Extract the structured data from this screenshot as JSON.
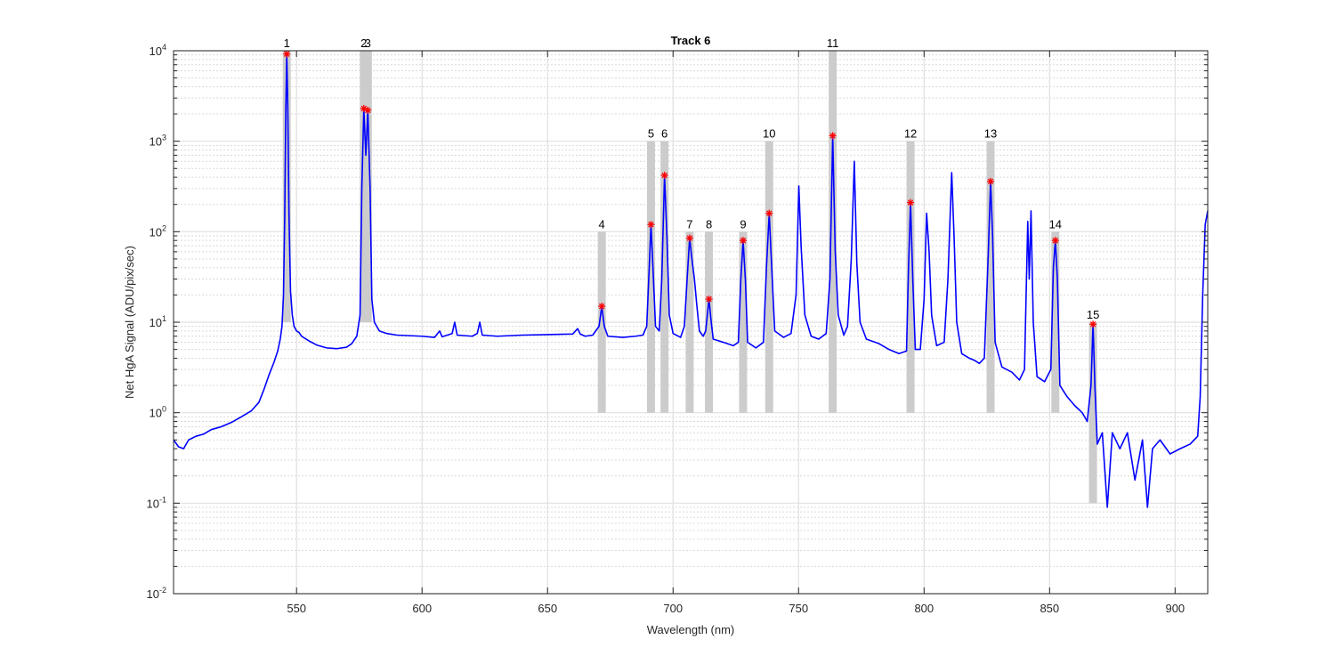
{
  "chart_data": {
    "type": "line",
    "title": "Track 6",
    "xlabel": "Wavelength (nm)",
    "ylabel": "Net HgA Signal (ADU/pix/sec)",
    "xlim": [
      501,
      913
    ],
    "ylim": [
      0.01,
      10000
    ],
    "yscale": "log",
    "grid": true,
    "x_ticks": [
      550,
      600,
      650,
      700,
      750,
      800,
      850,
      900
    ],
    "y_ticks": [
      {
        "value": 0.01,
        "base": "10",
        "exp": "-2"
      },
      {
        "value": 0.1,
        "base": "10",
        "exp": "-1"
      },
      {
        "value": 1,
        "base": "10",
        "exp": "0"
      },
      {
        "value": 10,
        "base": "10",
        "exp": "1"
      },
      {
        "value": 100,
        "base": "10",
        "exp": "2"
      },
      {
        "value": 1000,
        "base": "10",
        "exp": "3"
      },
      {
        "value": 10000,
        "base": "10",
        "exp": "4"
      }
    ],
    "colors": {
      "line": "#0000ff",
      "marker": "#ff0000",
      "band": "#cccccc",
      "grid": "#e0e0e0"
    },
    "series": [
      {
        "points": [
          [
            501,
            0.5
          ],
          [
            503,
            0.42
          ],
          [
            505,
            0.4
          ],
          [
            507,
            0.5
          ],
          [
            510,
            0.55
          ],
          [
            513,
            0.58
          ],
          [
            516,
            0.65
          ],
          [
            520,
            0.7
          ],
          [
            524,
            0.78
          ],
          [
            528,
            0.9
          ],
          [
            532,
            1.05
          ],
          [
            535,
            1.3
          ],
          [
            537,
            1.8
          ],
          [
            539,
            2.6
          ],
          [
            541,
            3.6
          ],
          [
            542.5,
            4.8
          ],
          [
            543.5,
            6.5
          ],
          [
            544.2,
            9
          ],
          [
            544.8,
            20
          ],
          [
            545.3,
            150
          ],
          [
            545.7,
            2000
          ],
          [
            546.1,
            9200
          ],
          [
            546.5,
            2500
          ],
          [
            547,
            150
          ],
          [
            547.6,
            22
          ],
          [
            548.3,
            12
          ],
          [
            549,
            9
          ],
          [
            550,
            8
          ],
          [
            551,
            7.7
          ],
          [
            552,
            7
          ],
          [
            555,
            6.2
          ],
          [
            558,
            5.6
          ],
          [
            562,
            5.2
          ],
          [
            566,
            5.1
          ],
          [
            570,
            5.3
          ],
          [
            572,
            5.8
          ],
          [
            574,
            7
          ],
          [
            575.3,
            12
          ],
          [
            576,
            300
          ],
          [
            576.8,
            2300
          ],
          [
            577.6,
            700
          ],
          [
            578.4,
            2200
          ],
          [
            579.3,
            300
          ],
          [
            580,
            18
          ],
          [
            581,
            10
          ],
          [
            583,
            8
          ],
          [
            586,
            7.5
          ],
          [
            590,
            7.2
          ],
          [
            600,
            7
          ],
          [
            605,
            6.8
          ],
          [
            607,
            8
          ],
          [
            608,
            6.9
          ],
          [
            612,
            7.5
          ],
          [
            613,
            10
          ],
          [
            614,
            7.2
          ],
          [
            620,
            7
          ],
          [
            622,
            7.5
          ],
          [
            623,
            10
          ],
          [
            624,
            7.2
          ],
          [
            630,
            7
          ],
          [
            640,
            7.2
          ],
          [
            650,
            7.3
          ],
          [
            660,
            7.4
          ],
          [
            662,
            8.5
          ],
          [
            663,
            7.4
          ],
          [
            665,
            7
          ],
          [
            668,
            7.2
          ],
          [
            670.5,
            9
          ],
          [
            671.6,
            15
          ],
          [
            672.6,
            9
          ],
          [
            674,
            7
          ],
          [
            680,
            6.8
          ],
          [
            685,
            7
          ],
          [
            688,
            7.2
          ],
          [
            689.5,
            9
          ],
          [
            690.5,
            40
          ],
          [
            691.2,
            120
          ],
          [
            692,
            40
          ],
          [
            693,
            9
          ],
          [
            694.5,
            8
          ],
          [
            695.5,
            30
          ],
          [
            696.6,
            420
          ],
          [
            697.6,
            80
          ],
          [
            698.5,
            12
          ],
          [
            700,
            7.5
          ],
          [
            703,
            6.8
          ],
          [
            704.5,
            9
          ],
          [
            705.6,
            30
          ],
          [
            706.6,
            85
          ],
          [
            707.5,
            50
          ],
          [
            708.5,
            30
          ],
          [
            709.5,
            15
          ],
          [
            710.5,
            8
          ],
          [
            712,
            7
          ],
          [
            713,
            8
          ],
          [
            714.3,
            18
          ],
          [
            715.2,
            10
          ],
          [
            716,
            6.5
          ],
          [
            720,
            6
          ],
          [
            724,
            5.5
          ],
          [
            726,
            6
          ],
          [
            727,
            30
          ],
          [
            727.9,
            80
          ],
          [
            728.8,
            30
          ],
          [
            729.7,
            6
          ],
          [
            733,
            5.2
          ],
          [
            736,
            6
          ],
          [
            737.2,
            40
          ],
          [
            738.3,
            160
          ],
          [
            739.3,
            40
          ],
          [
            740.5,
            8
          ],
          [
            744,
            6.8
          ],
          [
            747,
            7.5
          ],
          [
            749,
            20
          ],
          [
            750.1,
            320
          ],
          [
            751,
            70
          ],
          [
            752.5,
            12
          ],
          [
            755,
            7
          ],
          [
            758,
            6.5
          ],
          [
            761,
            7.5
          ],
          [
            762.5,
            30
          ],
          [
            763.6,
            1150
          ],
          [
            764.6,
            60
          ],
          [
            765.8,
            12
          ],
          [
            768,
            7.2
          ],
          [
            769.5,
            9
          ],
          [
            771,
            50
          ],
          [
            772.2,
            600
          ],
          [
            773.2,
            45
          ],
          [
            774.5,
            10
          ],
          [
            777,
            6.5
          ],
          [
            782,
            5.8
          ],
          [
            786,
            5
          ],
          [
            790,
            4.5
          ],
          [
            793,
            4.8
          ],
          [
            793.8,
            40
          ],
          [
            794.6,
            210
          ],
          [
            795.5,
            30
          ],
          [
            796.5,
            5
          ],
          [
            798.5,
            5
          ],
          [
            800,
            18
          ],
          [
            801,
            160
          ],
          [
            802,
            60
          ],
          [
            803,
            12
          ],
          [
            805,
            5.5
          ],
          [
            808,
            6
          ],
          [
            809.5,
            30
          ],
          [
            811,
            450
          ],
          [
            812,
            80
          ],
          [
            813,
            10
          ],
          [
            815,
            4.5
          ],
          [
            818,
            4
          ],
          [
            820,
            3.8
          ],
          [
            822,
            3.5
          ],
          [
            824,
            4
          ],
          [
            825.6,
            60
          ],
          [
            826.5,
            360
          ],
          [
            827.3,
            90
          ],
          [
            828.3,
            6
          ],
          [
            831,
            3.2
          ],
          [
            835,
            2.8
          ],
          [
            838,
            2.3
          ],
          [
            840,
            3
          ],
          [
            841.3,
            130
          ],
          [
            841.9,
            30
          ],
          [
            842.6,
            170
          ],
          [
            843.5,
            10
          ],
          [
            845,
            2.5
          ],
          [
            848,
            2.2
          ],
          [
            850.5,
            3
          ],
          [
            851.5,
            40
          ],
          [
            852.3,
            80
          ],
          [
            853.1,
            30
          ],
          [
            854.1,
            2
          ],
          [
            857,
            1.5
          ],
          [
            860,
            1.2
          ],
          [
            863,
            1
          ],
          [
            865,
            0.8
          ],
          [
            866.5,
            2
          ],
          [
            867.3,
            9.5
          ],
          [
            868.1,
            1.8
          ],
          [
            869,
            0.45
          ],
          [
            871,
            0.6
          ],
          [
            873,
            0.09
          ],
          [
            875,
            0.6
          ],
          [
            878,
            0.4
          ],
          [
            881,
            0.6
          ],
          [
            884,
            0.18
          ],
          [
            887,
            0.5
          ],
          [
            889,
            0.09
          ],
          [
            891,
            0.4
          ],
          [
            894,
            0.5
          ],
          [
            898,
            0.35
          ],
          [
            902,
            0.4
          ],
          [
            906,
            0.45
          ],
          [
            909,
            0.55
          ],
          [
            910,
            1.5
          ],
          [
            911,
            20
          ],
          [
            912,
            120
          ],
          [
            913,
            170
          ]
        ]
      }
    ],
    "highlights": [
      {
        "id": "1",
        "wl": 546.1,
        "peak": 9200,
        "band_top": 10000,
        "band_bottom": 10
      },
      {
        "id": "2",
        "wl": 576.8,
        "peak": 2300,
        "band_top": 10000,
        "band_bottom": 10
      },
      {
        "id": "3",
        "wl": 578.4,
        "peak": 2200,
        "band_top": 10000,
        "band_bottom": 10
      },
      {
        "id": "4",
        "wl": 671.6,
        "peak": 15,
        "band_top": 100,
        "band_bottom": 1
      },
      {
        "id": "5",
        "wl": 691.2,
        "peak": 120,
        "band_top": 1000,
        "band_bottom": 1
      },
      {
        "id": "6",
        "wl": 696.6,
        "peak": 420,
        "band_top": 1000,
        "band_bottom": 1
      },
      {
        "id": "7",
        "wl": 706.6,
        "peak": 85,
        "band_top": 100,
        "band_bottom": 1
      },
      {
        "id": "8",
        "wl": 714.3,
        "peak": 18,
        "band_top": 100,
        "band_bottom": 1
      },
      {
        "id": "9",
        "wl": 727.9,
        "peak": 80,
        "band_top": 100,
        "band_bottom": 1
      },
      {
        "id": "10",
        "wl": 738.3,
        "peak": 160,
        "band_top": 1000,
        "band_bottom": 1
      },
      {
        "id": "11",
        "wl": 763.6,
        "peak": 1150,
        "band_top": 10000,
        "band_bottom": 1
      },
      {
        "id": "12",
        "wl": 794.6,
        "peak": 210,
        "band_top": 1000,
        "band_bottom": 1
      },
      {
        "id": "13",
        "wl": 826.5,
        "peak": 360,
        "band_top": 1000,
        "band_bottom": 1
      },
      {
        "id": "14",
        "wl": 852.3,
        "peak": 80,
        "band_top": 100,
        "band_bottom": 1
      },
      {
        "id": "15",
        "wl": 867.3,
        "peak": 9.5,
        "band_top": 10,
        "band_bottom": 0.1
      }
    ]
  }
}
